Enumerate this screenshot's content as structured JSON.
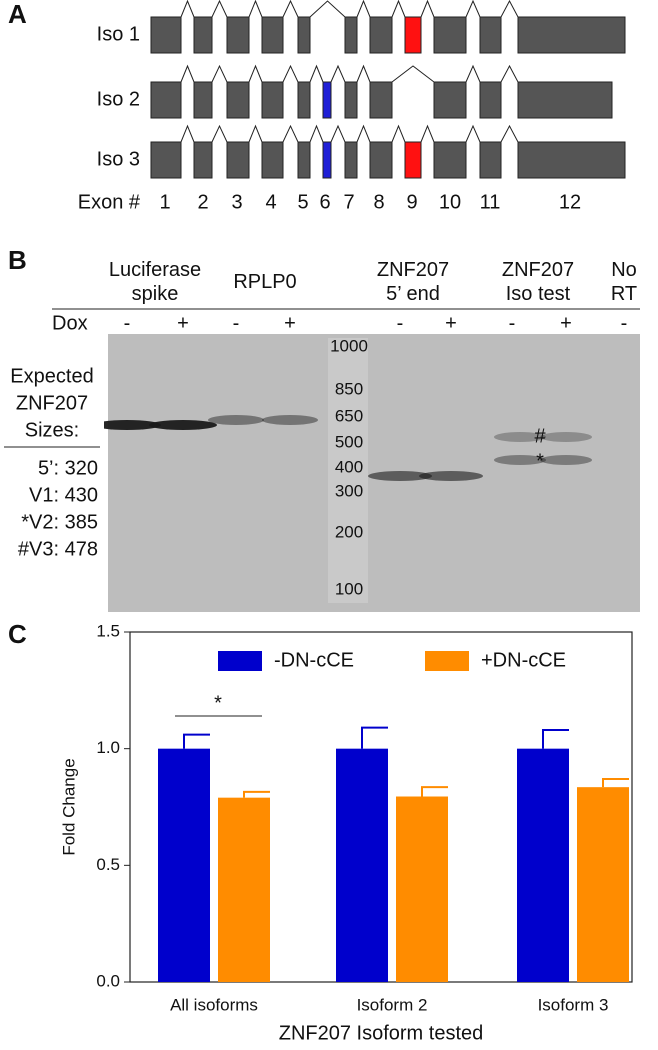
{
  "panel_a": {
    "label": "A",
    "isoforms": [
      "Iso 1",
      "Iso 2",
      "Iso 3"
    ],
    "exon_label": "Exon #",
    "exon_numbers": [
      "1",
      "2",
      "3",
      "4",
      "5",
      "6",
      "7",
      "8",
      "9",
      "10",
      "11",
      "12"
    ]
  },
  "panel_b": {
    "label": "B",
    "groups": [
      "Luciferase\nspike",
      "RPLP0",
      "ZNF207\n5’ end",
      "ZNF207\nIso test",
      "No\nRT"
    ],
    "dox_label": "Dox",
    "dox_signs": [
      "-",
      "+",
      "-",
      "+",
      "-",
      "+",
      "-",
      "+",
      "-"
    ],
    "ladder": [
      "1000",
      "850",
      "650",
      "500",
      "400",
      "300",
      "200",
      "100"
    ],
    "expected_title": [
      "Expected",
      "ZNF207",
      "Sizes:"
    ],
    "expected_sizes": [
      "5’: 320",
      "V1: 430",
      "*V2: 385",
      "#V3: 478"
    ],
    "band_marks": [
      "#",
      "*"
    ]
  },
  "panel_c": {
    "label": "C"
  },
  "chart_data": {
    "type": "bar",
    "y_label": "Fold Change",
    "x_label": "ZNF207 Isoform tested",
    "categories": [
      "All isoforms",
      "Isoform 2",
      "Isoform 3"
    ],
    "series": [
      {
        "name": "-DN-cCE",
        "color": "#0000cc",
        "values": [
          1.0,
          1.0,
          1.0
        ],
        "errors": [
          0.06,
          0.09,
          0.08
        ]
      },
      {
        "name": "+DN-cCE",
        "color": "#ff8c00",
        "values": [
          0.79,
          0.795,
          0.835
        ],
        "errors": [
          0.025,
          0.04,
          0.035
        ]
      }
    ],
    "ylim": [
      0,
      1.5
    ],
    "yticks": [
      {
        "value": 0,
        "label": "0.0"
      },
      {
        "value": 0.5,
        "label": "0.5"
      },
      {
        "value": 1,
        "label": "1.0"
      },
      {
        "value": 1.5,
        "label": "1.5"
      }
    ],
    "annotation": "*"
  }
}
